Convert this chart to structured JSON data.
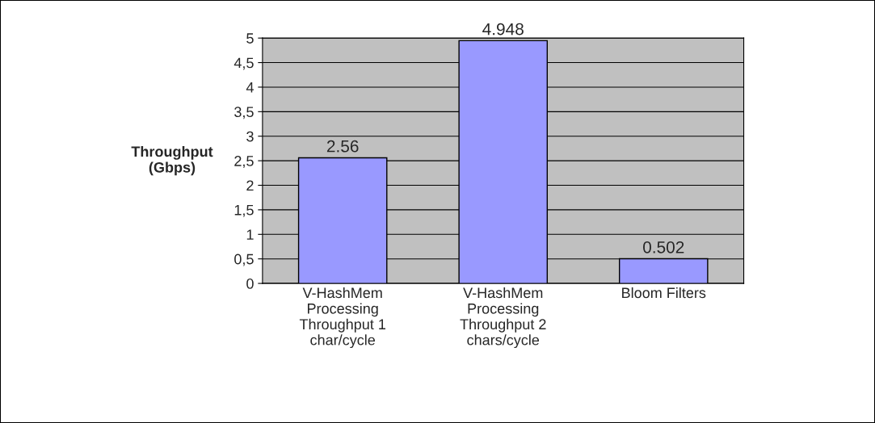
{
  "chart_data": {
    "type": "bar",
    "ylabel": "Throughput\n(Gbps)",
    "categories": [
      "V-HashMem\nProcessing\nThroughput 1\nchar/cycle",
      "V-HashMem\nProcessing\nThroughput 2\nchars/cycle",
      "Bloom Filters"
    ],
    "values": [
      2.56,
      4.948,
      0.502
    ],
    "color": "#9999ff",
    "data_labels": true,
    "ylim": [
      0,
      5
    ],
    "yticks": [
      0,
      {
        "value": 0.5,
        "label": "0,5"
      },
      1,
      {
        "value": 1.5,
        "label": "1,5"
      },
      2,
      {
        "value": 2.5,
        "label": "2,5"
      },
      3,
      {
        "value": 3.5,
        "label": "3,5"
      },
      4,
      {
        "value": 4.5,
        "label": "4,5"
      },
      5
    ],
    "grid": "y"
  }
}
